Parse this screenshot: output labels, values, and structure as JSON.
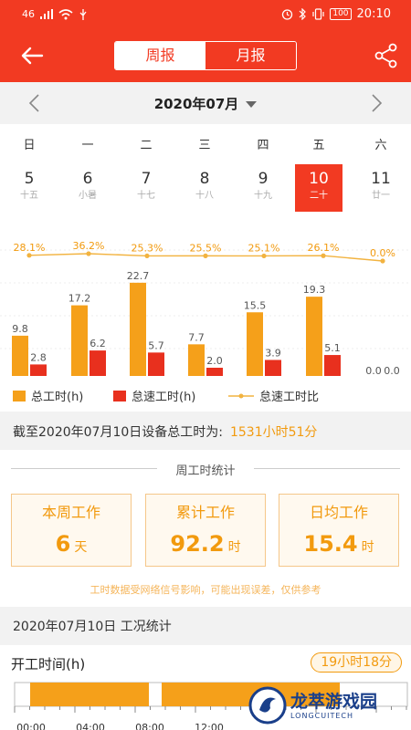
{
  "status_bar": {
    "signal": "46",
    "time": "20:10",
    "battery": "100"
  },
  "header": {
    "tab_week": "周报",
    "tab_month": "月报"
  },
  "month_nav": {
    "title": "2020年07月"
  },
  "weekdays": [
    "日",
    "一",
    "二",
    "三",
    "四",
    "五",
    "六"
  ],
  "days": [
    {
      "num": "5",
      "lunar": "十五"
    },
    {
      "num": "6",
      "lunar": "小暑"
    },
    {
      "num": "7",
      "lunar": "十七"
    },
    {
      "num": "8",
      "lunar": "十八"
    },
    {
      "num": "9",
      "lunar": "十九"
    },
    {
      "num": "10",
      "lunar": "二十",
      "selected": true
    },
    {
      "num": "11",
      "lunar": "廿一"
    }
  ],
  "chart_data": {
    "type": "bar",
    "categories": [
      "5",
      "6",
      "7",
      "8",
      "9",
      "10",
      "11"
    ],
    "series": [
      {
        "name": "总工时(h)",
        "values": [
          9.8,
          17.2,
          22.7,
          7.7,
          15.5,
          19.3,
          0.0
        ],
        "color": "#f5a01a"
      },
      {
        "name": "怠速工时(h)",
        "values": [
          2.8,
          6.2,
          5.7,
          2.0,
          3.9,
          5.1,
          0.0
        ],
        "color": "#e8301e"
      },
      {
        "name": "怠速工时比",
        "type": "line",
        "values": [
          "28.1%",
          "36.2%",
          "25.3%",
          "25.5%",
          "25.1%",
          "26.1%",
          "0.0%"
        ],
        "color": "#f2b340"
      }
    ],
    "value_labels": [
      "9.8",
      "17.2",
      "22.7",
      "7.7",
      "15.5",
      "19.3",
      "0.0"
    ],
    "idle_labels": [
      "2.8",
      "6.2",
      "5.7",
      "2.0",
      "3.9",
      "5.1",
      "0.0"
    ],
    "ylim": [
      0,
      24
    ],
    "legend_position": "bottom"
  },
  "summary": {
    "text": "截至2020年07月10日设备总工时为:",
    "value": "1531小时51分"
  },
  "stats": {
    "title": "周工时统计",
    "cards": [
      {
        "title": "本周工作",
        "value": "6",
        "unit": "天"
      },
      {
        "title": "累计工作",
        "value": "92.2",
        "unit": "时"
      },
      {
        "title": "日均工作",
        "value": "15.4",
        "unit": "时"
      }
    ],
    "note": "工时数据受网络信号影响，可能出现误差，仅供参考"
  },
  "condition": {
    "title": "2020年07月10日 工况统计"
  },
  "timeline": {
    "label": "开工时间(h)",
    "total": "19小时18分",
    "ticks": [
      "00:00",
      "04:00",
      "08:00",
      "12:00"
    ],
    "accent": "#f5a01a"
  },
  "watermark": {
    "cn": "龙萃游戏园",
    "en": "LONGCUITECH"
  }
}
